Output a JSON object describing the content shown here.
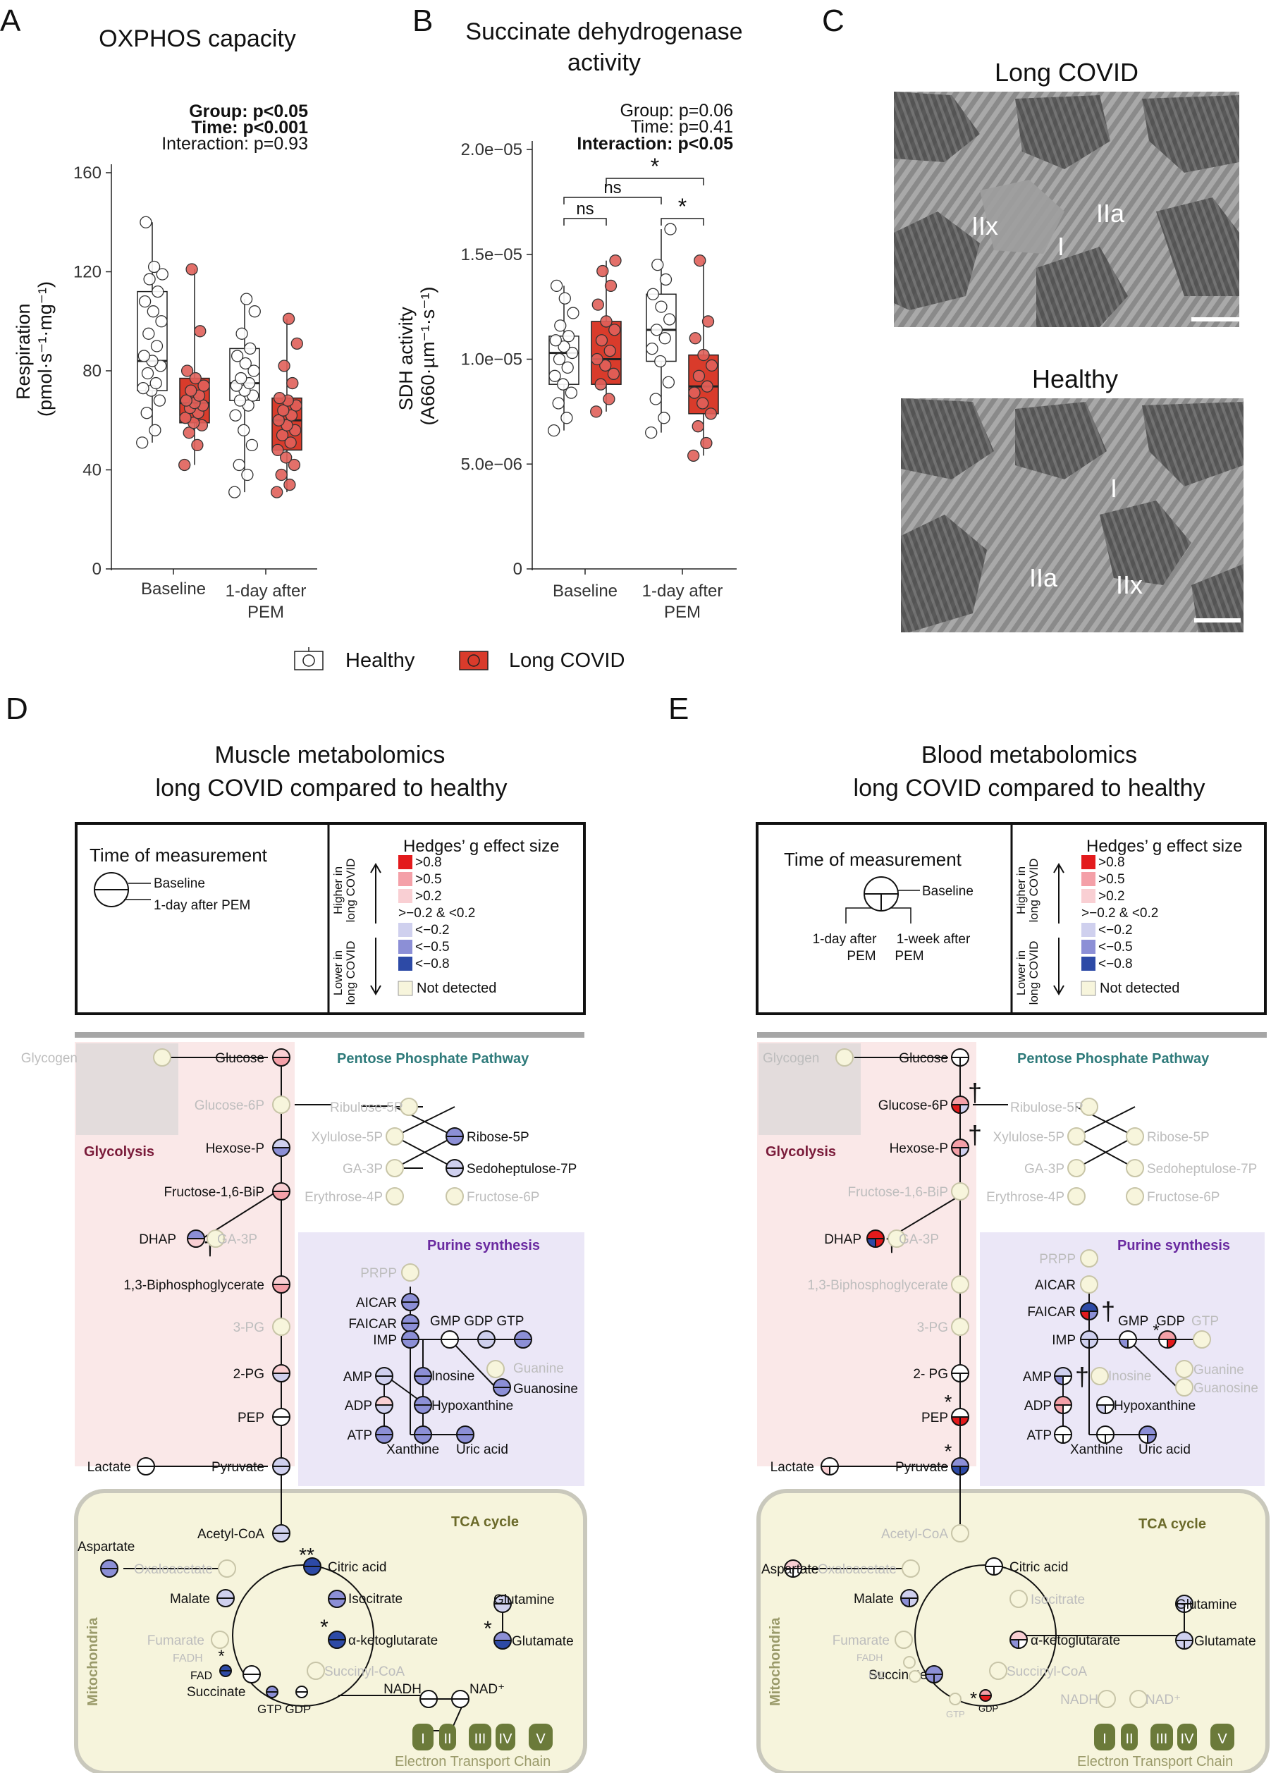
{
  "panels": {
    "a": "A",
    "b": "B",
    "c": "C",
    "d": "D",
    "e": "E"
  },
  "colors": {
    "healthy": "#ffffff",
    "long_covid": "#d93b2b",
    "up_strong": "#e31a1c",
    "up_mid": "#f4a0a8",
    "up_low": "#f9cfd3",
    "down_low": "#cfd0ee",
    "down_mid": "#8c8fd6",
    "down_strong": "#2d4aa6",
    "not_detected": "#f7f5dc"
  },
  "legend": {
    "healthy": "Healthy",
    "long_covid": "Long COVID"
  },
  "chart_data": [
    {
      "id": "A",
      "type": "box",
      "title": "OXPHOS capacity",
      "stats": [
        "Group: p<0.05",
        "Time: p<0.001",
        "Interaction: p=0.93"
      ],
      "ylabel_line1": "Respiration",
      "ylabel_line2": "(pmol·s⁻¹·mg⁻¹)",
      "ylim": [
        0,
        160
      ],
      "yticks": [
        0,
        40,
        80,
        120,
        160
      ],
      "categories": [
        "Baseline",
        "1-day after PEM"
      ],
      "series": [
        {
          "name": "Healthy",
          "boxes": [
            {
              "min": 51,
              "q1": 72,
              "median": 84,
              "q3": 112,
              "max": 140,
              "points": [
                51,
                56,
                63,
                68,
                72,
                73,
                75,
                79,
                82,
                84,
                86,
                90,
                95,
                100,
                104,
                108,
                112,
                117,
                119,
                122,
                140
              ]
            },
            {
              "min": 31,
              "q1": 68,
              "median": 75,
              "q3": 89,
              "max": 109,
              "points": [
                31,
                38,
                42,
                50,
                56,
                62,
                66,
                68,
                70,
                72,
                74,
                75,
                77,
                80,
                83,
                86,
                89,
                95,
                104,
                109
              ]
            }
          ]
        },
        {
          "name": "Long COVID",
          "boxes": [
            {
              "min": 42,
              "q1": 59,
              "median": 67,
              "q3": 77,
              "max": 121,
              "points": [
                42,
                50,
                55,
                58,
                59,
                61,
                63,
                65,
                66,
                67,
                68,
                70,
                72,
                74,
                77,
                80,
                96,
                121
              ]
            },
            {
              "min": 31,
              "q1": 48,
              "median": 60,
              "q3": 69,
              "max": 101,
              "points": [
                31,
                34,
                38,
                42,
                45,
                48,
                51,
                54,
                56,
                58,
                60,
                62,
                64,
                66,
                68,
                69,
                75,
                82,
                91,
                101
              ]
            }
          ]
        }
      ]
    },
    {
      "id": "B",
      "type": "box",
      "title_line1": "Succinate dehydrogenase",
      "title_line2": "activity",
      "stats": [
        "Group: p=0.06",
        "Time: p=0.41",
        "Interaction: p<0.05"
      ],
      "ylabel_line1": "SDH activity",
      "ylabel_line2": "(A660·µm⁻¹·s⁻¹)",
      "ylim": [
        0,
        2e-05
      ],
      "yticks": [
        0,
        5e-06,
        1e-05,
        1.5e-05,
        2e-05
      ],
      "yticklabels": [
        "0",
        "5.0e−06",
        "1.0e−05",
        "1.5e−05",
        "2.0e−05"
      ],
      "categories": [
        "Baseline",
        "1-day after PEM"
      ],
      "brackets": [
        {
          "label": "ns",
          "from": "Baseline-Healthy",
          "to": "Baseline-Long COVID"
        },
        {
          "label": "ns",
          "from": "Baseline-Healthy",
          "to": "1-day after PEM-Healthy"
        },
        {
          "label": "*",
          "from": "Baseline-Long COVID",
          "to": "1-day after PEM-Long COVID"
        },
        {
          "label": "*",
          "from": "1-day after PEM-Healthy",
          "to": "1-day after PEM-Long COVID"
        }
      ],
      "series": [
        {
          "name": "Healthy",
          "boxes": [
            {
              "min": 6.6e-06,
              "q1": 8.8e-06,
              "median": 1.03e-05,
              "q3": 1.11e-05,
              "max": 1.35e-05,
              "points": [
                6.6e-06,
                7.2e-06,
                7.9e-06,
                8.4e-06,
                8.8e-06,
                9.2e-06,
                9.6e-06,
                1e-05,
                1.03e-05,
                1.06e-05,
                1.09e-05,
                1.11e-05,
                1.16e-05,
                1.22e-05,
                1.29e-05,
                1.35e-05
              ]
            },
            {
              "min": 6.5e-06,
              "q1": 9.9e-06,
              "median": 1.14e-05,
              "q3": 1.31e-05,
              "max": 1.62e-05,
              "points": [
                6.5e-06,
                7.2e-06,
                8.1e-06,
                8.9e-06,
                9.9e-06,
                1.05e-05,
                1.1e-05,
                1.14e-05,
                1.19e-05,
                1.25e-05,
                1.31e-05,
                1.38e-05,
                1.45e-05,
                1.62e-05
              ]
            }
          ]
        },
        {
          "name": "Long COVID",
          "boxes": [
            {
              "min": 7.5e-06,
              "q1": 8.8e-06,
              "median": 1e-05,
              "q3": 1.18e-05,
              "max": 1.47e-05,
              "points": [
                7.5e-06,
                8.1e-06,
                8.8e-06,
                9.3e-06,
                9.7e-06,
                1e-05,
                1.04e-05,
                1.09e-05,
                1.14e-05,
                1.18e-05,
                1.26e-05,
                1.35e-05,
                1.42e-05,
                1.47e-05
              ]
            },
            {
              "min": 5.4e-06,
              "q1": 7.4e-06,
              "median": 8.7e-06,
              "q3": 1.02e-05,
              "max": 1.47e-05,
              "points": [
                5.4e-06,
                6e-06,
                6.8e-06,
                7.4e-06,
                7.9e-06,
                8.4e-06,
                8.7e-06,
                9.2e-06,
                9.7e-06,
                1.02e-05,
                1.1e-05,
                1.18e-05,
                1.47e-05
              ]
            }
          ]
        }
      ]
    }
  ],
  "images": {
    "top_title": "Long COVID",
    "bottom_title": "Healthy",
    "top_labels": [
      "IIx",
      "I",
      "IIa"
    ],
    "bottom_labels": [
      "I",
      "IIa",
      "IIx"
    ]
  },
  "d": {
    "title_line1": "Muscle metabolomics",
    "title_line2": "long COVID compared to healthy",
    "legend_time_title": "Time of measurement",
    "time_labels": [
      "Baseline",
      "1-day after PEM"
    ]
  },
  "e": {
    "title_line1": "Blood metabolomics",
    "title_line2": "long COVID compared to healthy",
    "legend_time_title": "Time of measurement",
    "time_labels": [
      "Baseline",
      "1-day after",
      "PEM",
      "1-week after",
      "PEM"
    ]
  },
  "effect_legend": {
    "title": "Hedges’ g effect size",
    "higher": [
      "Higher in",
      "long COVID"
    ],
    "lower": [
      "Lower in",
      "long COVID"
    ],
    "items": [
      ">0.8",
      ">0.5",
      ">0.2",
      ">−0.2 & <0.2",
      "<−0.2",
      "<−0.5",
      "<−0.8"
    ],
    "not_detected": "Not detected"
  },
  "sections": {
    "ppp": "Pentose Phosphate Pathway",
    "glycolysis": "Glycolysis",
    "purine": "Purine synthesis",
    "tca": "TCA cycle",
    "mito": "Mitochondria",
    "etc": "Electron Transport Chain"
  },
  "metabolites": {
    "glycogen": "Glycogen",
    "glucose": "Glucose",
    "glucose6p": "Glucose-6P",
    "hexosep": "Hexose-P",
    "fbp": "Fructose-1,6-BiP",
    "dhap": "DHAP",
    "ga3p": "GA-3P",
    "bpg": "1,3-Biphosphoglycerate",
    "pg3": "3-PG",
    "pg2": "2-PG",
    "pg2e": "2- PG",
    "pep": "PEP",
    "lactate": "Lactate",
    "pyruvate": "Pyruvate",
    "ribulose": "Ribulose-5P",
    "xylulose": "Xylulose-5P",
    "ribose": "Ribose-5P",
    "ga3p2": "GA-3P",
    "sedo": "Sedoheptulose-7P",
    "ery": "Erythrose-4P",
    "f6p": "Fructose-6P",
    "prpp": "PRPP",
    "aicar": "AICAR",
    "faicar": "FAICAR",
    "imp": "IMP",
    "gmp_gdp_gtp": "GMP GDP GTP",
    "gmp": "GMP",
    "gdp": "GDP",
    "gtp": "GTP",
    "amp": "AMP",
    "adp": "ADP",
    "atp": "ATP",
    "inosine": "Inosine",
    "guanine": "Guanine",
    "guanosine": "Guanosine",
    "hypox": "Hypoxanthine",
    "xanthine": "Xanthine",
    "uric": "Uric acid",
    "acetylcoa": "Acetyl-CoA",
    "citric": "Citric acid",
    "isocitrate": "Isocitrate",
    "akg": "α-ketoglutarate",
    "succoa": "Succinyl-CoA",
    "succinate": "Succinate",
    "fumarate": "Fumarate",
    "malate": "Malate",
    "oxalo": "Oxaloacetate",
    "aspartate": "Aspartate",
    "glutamine": "Glutamine",
    "glutamate": "Glutamate",
    "fadh": "FADH",
    "fad": "FAD",
    "nadh": "NADH",
    "nad": "NAD⁺",
    "gtp_gdp": "GTP GDP",
    "gtp_s": "GTP",
    "gdp_s": "GDP",
    "etc_i": "I",
    "etc_ii": "II",
    "etc_iii": "III",
    "etc_iv": "IV",
    "etc_v": "V"
  },
  "marks": {
    "star1": "*",
    "star2": "**",
    "dagger": "†"
  }
}
